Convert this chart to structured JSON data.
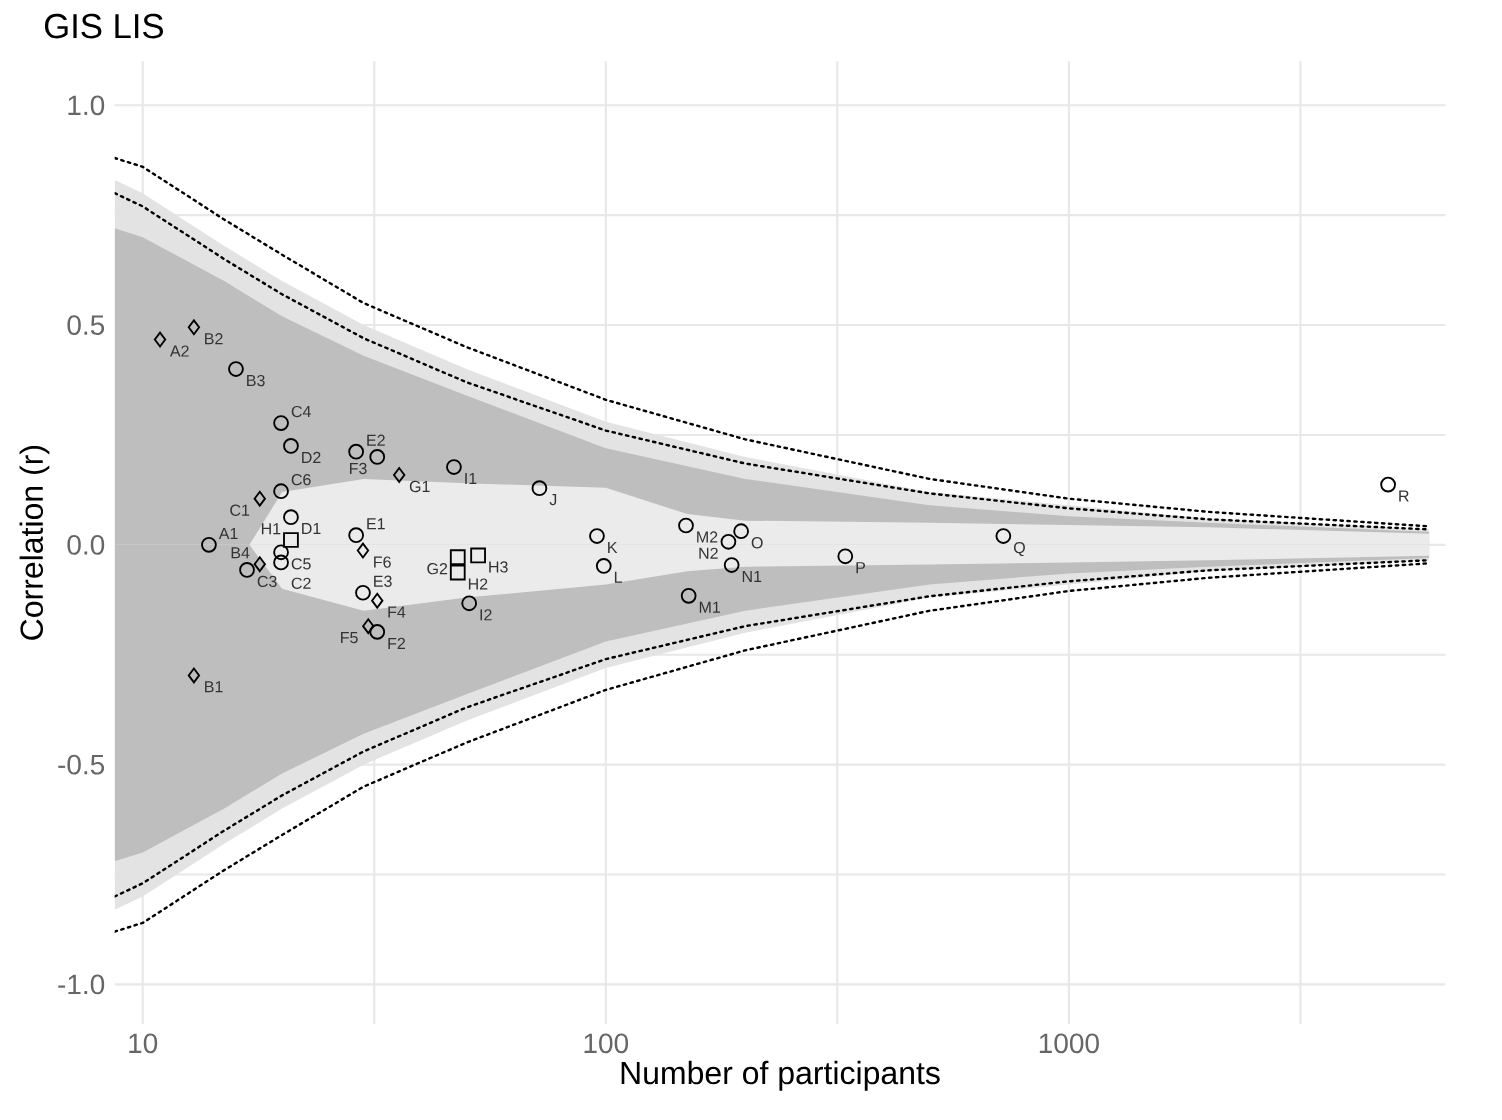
{
  "chart_data": {
    "type": "scatter",
    "title": "GIS LIS",
    "xlabel": "Number of participants",
    "ylabel": "Correlation (r)",
    "log": "x",
    "grid": true,
    "xlim": [
      8.7,
      6500
    ],
    "ylim": [
      -1.09,
      1.1
    ],
    "xticks": [
      10,
      {
        "value": 31.62,
        "label": null
      },
      100,
      {
        "value": 316.2,
        "label": null
      },
      1000,
      {
        "value": 3162,
        "label": null
      }
    ],
    "yticks": [
      {
        "value": -1,
        "label": "-1.0"
      },
      {
        "value": -0.75,
        "label": null
      },
      -0.5,
      {
        "value": -0.25,
        "label": null
      },
      {
        "value": 0,
        "label": "0.0"
      },
      {
        "value": 0.25,
        "label": null
      },
      0.5,
      {
        "value": 0.75,
        "label": null
      },
      {
        "value": 1,
        "label": "1.0"
      }
    ],
    "series": [
      {
        "type": "area",
        "color": "#e3e3e3",
        "x": [
          8.7,
          10,
          15,
          20,
          30,
          50,
          100,
          200,
          500,
          1000,
          2000,
          6000
        ],
        "values": [
          0.83,
          0.8,
          0.68,
          0.6,
          0.5,
          0.4,
          0.28,
          0.2,
          0.12,
          0.09,
          0.06,
          0.035
        ]
      },
      {
        "type": "area",
        "color": "#e3e3e3",
        "x": [
          8.7,
          10,
          15,
          20,
          30,
          50,
          100,
          200,
          500,
          1000,
          2000,
          6000
        ],
        "values": [
          -0.83,
          -0.8,
          -0.68,
          -0.6,
          -0.5,
          -0.4,
          -0.28,
          -0.2,
          -0.12,
          -0.09,
          -0.06,
          -0.035
        ]
      },
      {
        "type": "area",
        "color": "#bebebe",
        "x": [
          8.7,
          10,
          15,
          20,
          30,
          50,
          100,
          200,
          500,
          1000,
          2000,
          6000
        ],
        "values": [
          0.72,
          0.7,
          0.6,
          0.52,
          0.43,
          0.34,
          0.22,
          0.15,
          0.09,
          0.065,
          0.05,
          0.03
        ]
      },
      {
        "type": "area",
        "color": "#bebebe",
        "x": [
          8.7,
          10,
          15,
          20,
          30,
          50,
          100,
          200,
          500,
          1000,
          2000,
          6000
        ],
        "values": [
          -0.72,
          -0.7,
          -0.6,
          -0.52,
          -0.43,
          -0.34,
          -0.22,
          -0.15,
          -0.09,
          -0.065,
          -0.05,
          -0.03
        ]
      },
      {
        "type": "area",
        "color": "#ebebeb",
        "x": [
          17,
          20,
          30,
          50,
          100,
          150,
          200,
          500,
          1000,
          2000,
          6000
        ],
        "values": [
          0,
          0.12,
          0.15,
          0.14,
          0.13,
          0.07,
          0.055,
          0.05,
          0.045,
          0.04,
          0.025
        ]
      },
      {
        "type": "area",
        "color": "#ebebeb",
        "x": [
          17,
          20,
          30,
          50,
          100,
          150,
          200,
          500,
          1000,
          2000,
          6000
        ],
        "values": [
          0,
          -0.1,
          -0.15,
          -0.12,
          -0.09,
          -0.06,
          -0.05,
          -0.045,
          -0.04,
          -0.035,
          -0.025
        ]
      },
      {
        "type": "line",
        "color": "#000000",
        "line_style": "dotted",
        "x": [
          8.7,
          10,
          15,
          20,
          30,
          50,
          100,
          200,
          500,
          1000,
          2000,
          6000
        ],
        "values": [
          0.88,
          0.86,
          0.74,
          0.66,
          0.55,
          0.45,
          0.33,
          0.24,
          0.15,
          0.105,
          0.075,
          0.042
        ]
      },
      {
        "type": "line",
        "color": "#000000",
        "line_style": "dotted",
        "x": [
          8.7,
          10,
          15,
          20,
          30,
          50,
          100,
          200,
          500,
          1000,
          2000,
          6000
        ],
        "values": [
          0.8,
          0.77,
          0.65,
          0.57,
          0.47,
          0.37,
          0.26,
          0.185,
          0.117,
          0.083,
          0.058,
          0.035
        ]
      },
      {
        "type": "line",
        "color": "#000000",
        "line_style": "dotted",
        "x": [
          8.7,
          10,
          15,
          20,
          30,
          50,
          100,
          200,
          500,
          1000,
          2000,
          6000
        ],
        "values": [
          -0.8,
          -0.77,
          -0.65,
          -0.57,
          -0.47,
          -0.37,
          -0.26,
          -0.185,
          -0.117,
          -0.083,
          -0.058,
          -0.035
        ]
      },
      {
        "type": "line",
        "color": "#000000",
        "line_style": "dotted",
        "x": [
          8.7,
          10,
          15,
          20,
          30,
          50,
          100,
          200,
          500,
          1000,
          2000,
          6000
        ],
        "values": [
          -0.88,
          -0.86,
          -0.74,
          -0.66,
          -0.55,
          -0.45,
          -0.33,
          -0.24,
          -0.15,
          -0.105,
          -0.075,
          -0.042
        ]
      },
      {
        "marker": "diamond",
        "color": "#000000",
        "x": [
          10.9,
          12.9,
          12.9,
          17.9,
          17.9,
          29.9,
          35.8,
          32.1,
          30.7
        ],
        "values": [
          0.467,
          0.495,
          -0.297,
          0.105,
          -0.044,
          -0.013,
          0.159,
          -0.127,
          -0.185
        ]
      },
      {
        "marker": "circle",
        "color": "#000000",
        "x": [
          15.9,
          13.9,
          19.9,
          20.9,
          19.9,
          20.9,
          19.9,
          19.9,
          16.8,
          28.9,
          32.1,
          28.9,
          29.9,
          32.1,
          47,
          50.7,
          71.9,
          95.7,
          99,
          149,
          151,
          184,
          196,
          187,
          329,
          722,
          4890
        ],
        "values": [
          0.4,
          0.0,
          0.277,
          0.225,
          0.122,
          0.063,
          -0.017,
          -0.04,
          -0.057,
          0.212,
          0.2,
          0.022,
          -0.109,
          -0.198,
          0.177,
          -0.133,
          0.129,
          0.02,
          -0.048,
          0.044,
          -0.116,
          0.007,
          0.031,
          -0.046,
          -0.026,
          0.02,
          0.137
        ]
      },
      {
        "marker": "square",
        "color": "#000000",
        "x": [
          20.9,
          47.9,
          47.9,
          53
        ],
        "values": [
          0.011,
          -0.028,
          -0.063,
          -0.024
        ]
      }
    ],
    "annotations": [
      {
        "text": "A2",
        "x": 10.9,
        "y": 0.467
      },
      {
        "text": "B2",
        "x": 12.9,
        "y": 0.495
      },
      {
        "text": "B1",
        "x": 12.9,
        "y": -0.297
      },
      {
        "text": "C1",
        "x": 17.9,
        "y": 0.105
      },
      {
        "text": "B4",
        "x": 17.9,
        "y": -0.044
      },
      {
        "text": "F6",
        "x": 29.9,
        "y": -0.013
      },
      {
        "text": "G1",
        "x": 35.8,
        "y": 0.159
      },
      {
        "text": "F4",
        "x": 32.1,
        "y": -0.127
      },
      {
        "text": "F5",
        "x": 30.7,
        "y": -0.185
      },
      {
        "text": "B3",
        "x": 15.9,
        "y": 0.4
      },
      {
        "text": "A1",
        "x": 13.9,
        "y": 0.0
      },
      {
        "text": "C4",
        "x": 19.9,
        "y": 0.277
      },
      {
        "text": "D2",
        "x": 20.9,
        "y": 0.225
      },
      {
        "text": "C6",
        "x": 19.9,
        "y": 0.122
      },
      {
        "text": "D1",
        "x": 20.9,
        "y": 0.063
      },
      {
        "text": "C5",
        "x": 19.9,
        "y": -0.017
      },
      {
        "text": "C2",
        "x": 19.9,
        "y": -0.04
      },
      {
        "text": "C3",
        "x": 16.8,
        "y": -0.057
      },
      {
        "text": "E2",
        "x": 28.9,
        "y": 0.212
      },
      {
        "text": "F3",
        "x": 32.1,
        "y": 0.2
      },
      {
        "text": "E1",
        "x": 28.9,
        "y": 0.022
      },
      {
        "text": "E3",
        "x": 29.9,
        "y": -0.109
      },
      {
        "text": "F2",
        "x": 32.1,
        "y": -0.198
      },
      {
        "text": "I1",
        "x": 47,
        "y": 0.177
      },
      {
        "text": "I2",
        "x": 50.7,
        "y": -0.133
      },
      {
        "text": "J",
        "x": 71.9,
        "y": 0.129
      },
      {
        "text": "K",
        "x": 95.7,
        "y": 0.02
      },
      {
        "text": "L",
        "x": 99,
        "y": -0.048
      },
      {
        "text": "M2",
        "x": 149,
        "y": 0.044
      },
      {
        "text": "M1",
        "x": 151,
        "y": -0.116
      },
      {
        "text": "N2",
        "x": 184,
        "y": 0.007
      },
      {
        "text": "O",
        "x": 196,
        "y": 0.031
      },
      {
        "text": "N1",
        "x": 187,
        "y": -0.046
      },
      {
        "text": "P",
        "x": 329,
        "y": -0.026
      },
      {
        "text": "Q",
        "x": 722,
        "y": 0.02
      },
      {
        "text": "R",
        "x": 4890,
        "y": 0.137
      },
      {
        "text": "H1",
        "x": 20.9,
        "y": 0.011
      },
      {
        "text": "G2",
        "x": 47.9,
        "y": -0.028
      },
      {
        "text": "H2",
        "x": 47.9,
        "y": -0.063
      },
      {
        "text": "H3",
        "x": 53,
        "y": -0.024
      }
    ]
  }
}
